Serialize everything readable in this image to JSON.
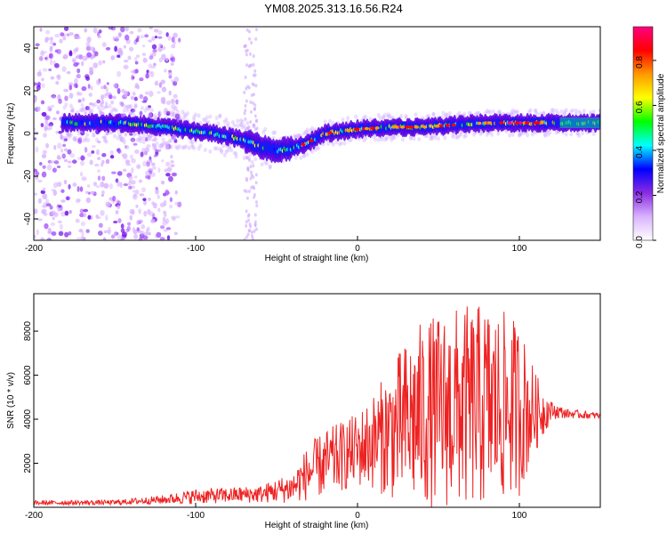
{
  "title": "YM08.2025.313.16.56.R24",
  "chart_data": [
    {
      "type": "heatmap",
      "xlabel": "Height of straight line (km)",
      "ylabel": "Frequency (Hz)",
      "xlim": [
        -200,
        150
      ],
      "ylim": [
        -50,
        50
      ],
      "xticks": [
        -200,
        -100,
        0,
        100
      ],
      "yticks": [
        -40,
        -20,
        0,
        20,
        40
      ],
      "colorbar": {
        "label": "Normalized spectral amplitude",
        "range": [
          0.0,
          0.95
        ],
        "ticks": [
          "0.0",
          "0.2",
          "0.4",
          "0.6",
          "0.8"
        ],
        "colors": [
          "#ffffff",
          "#d9b3ff",
          "#8a2be2",
          "#0000ff",
          "#00ffff",
          "#00ff00",
          "#ffff00",
          "#ff9900",
          "#ff0000",
          "#ff0080"
        ]
      },
      "ridge": {
        "x": [
          -180,
          -150,
          -130,
          -110,
          -90,
          -70,
          -60,
          -50,
          -40,
          -30,
          -20,
          0,
          20,
          40,
          60,
          80,
          100,
          120,
          150
        ],
        "freq": [
          5,
          5,
          4,
          2,
          0,
          -3,
          -6,
          -8,
          -7,
          -4,
          0,
          2,
          3,
          3,
          4,
          5,
          5,
          5,
          5
        ]
      },
      "noise_region": {
        "x_start": -200,
        "x_end": -110
      }
    },
    {
      "type": "line",
      "xlabel": "Height of straight line (km)",
      "ylabel": "SNR (10 * v/v)",
      "xlim": [
        -200,
        150
      ],
      "ylim": [
        0,
        9700
      ],
      "xticks": [
        -200,
        -100,
        0,
        100
      ],
      "yticks": [
        2000,
        4000,
        6000,
        8000
      ],
      "color": "#ee2222",
      "envelope": {
        "x": [
          -200,
          -150,
          -120,
          -100,
          -80,
          -60,
          -40,
          -30,
          -20,
          0,
          10,
          20,
          30,
          40,
          60,
          80,
          100,
          110,
          120,
          130,
          150
        ],
        "mean": [
          200,
          220,
          350,
          500,
          550,
          600,
          900,
          1600,
          2000,
          2600,
          3000,
          3400,
          3800,
          4200,
          4500,
          4600,
          4500,
          4300,
          4400,
          4250,
          4150
        ],
        "amp": [
          100,
          110,
          200,
          350,
          350,
          400,
          700,
          1300,
          1500,
          1700,
          2200,
          3000,
          3800,
          4300,
          4600,
          4700,
          4000,
          1800,
          400,
          200,
          150
        ]
      }
    }
  ]
}
